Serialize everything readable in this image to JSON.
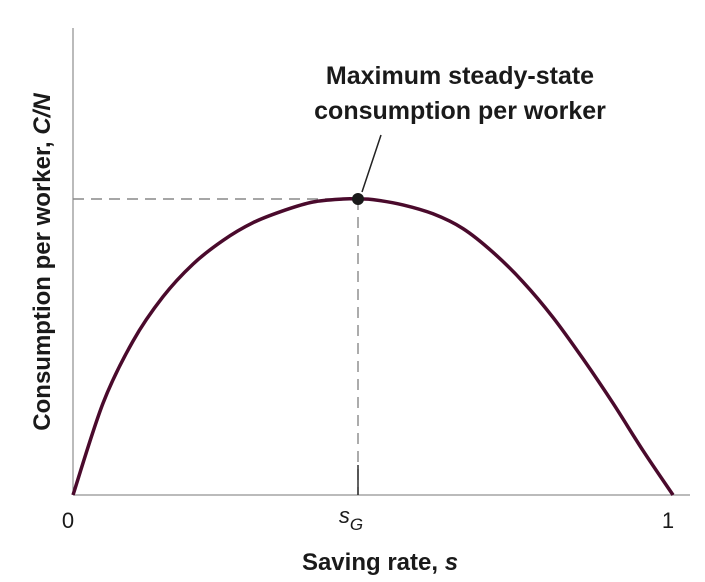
{
  "chart_data": {
    "type": "line",
    "title": "",
    "xlabel": "Saving rate, ",
    "xlabel_var": "s",
    "ylabel": "Consumption per worker, ",
    "ylabel_var": "C/N",
    "xlim": [
      0,
      1
    ],
    "x_ticks": [
      {
        "value": 0,
        "label": "0"
      },
      {
        "value": 0.475,
        "label": "s",
        "sub": "G"
      },
      {
        "value": 1,
        "label": "1"
      }
    ],
    "series": [
      {
        "color": "#4a0a2c",
        "x": [
          0,
          0.05,
          0.1,
          0.15,
          0.2,
          0.25,
          0.3,
          0.35,
          0.4,
          0.45,
          0.475,
          0.5,
          0.55,
          0.6,
          0.65,
          0.7,
          0.75,
          0.8,
          0.85,
          0.9,
          0.95,
          1
        ],
        "y": [
          0,
          0.31,
          0.52,
          0.67,
          0.78,
          0.86,
          0.92,
          0.96,
          0.99,
          1.0,
          1.0,
          0.998,
          0.98,
          0.95,
          0.9,
          0.82,
          0.72,
          0.6,
          0.46,
          0.31,
          0.15,
          0
        ]
      }
    ],
    "maximum": {
      "x": 0.475,
      "y": 1.0
    },
    "annotations": [
      {
        "line1": "Maximum steady-state",
        "line2": "consumption per worker"
      }
    ],
    "grid": false,
    "legend": "none"
  }
}
